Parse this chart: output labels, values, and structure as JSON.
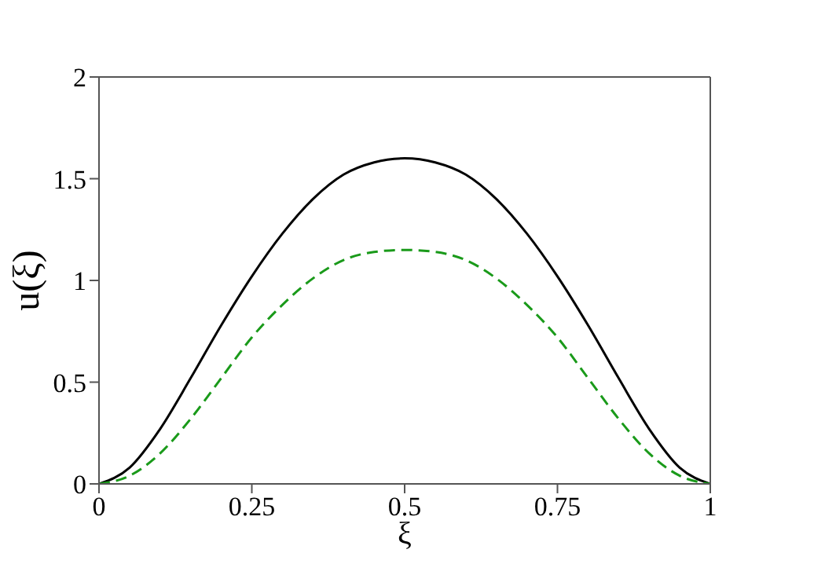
{
  "chart_data": {
    "type": "line",
    "xlabel": "ξ",
    "ylabel": "u(ξ)",
    "x": [
      0,
      0.05,
      0.1,
      0.15,
      0.2,
      0.25,
      0.3,
      0.35,
      0.4,
      0.45,
      0.5,
      0.55,
      0.6,
      0.65,
      0.7,
      0.75,
      0.8,
      0.85,
      0.9,
      0.95,
      1
    ],
    "series": [
      {
        "color": "#000000",
        "line_style": "solid",
        "values": [
          0,
          0.08,
          0.27,
          0.52,
          0.78,
          1.02,
          1.23,
          1.4,
          1.52,
          1.58,
          1.6,
          1.58,
          1.52,
          1.4,
          1.23,
          1.02,
          0.78,
          0.52,
          0.27,
          0.08,
          0
        ]
      },
      {
        "color": "#1a9a1a",
        "line_style": "dashed",
        "values": [
          0,
          0.04,
          0.15,
          0.32,
          0.52,
          0.72,
          0.88,
          1.01,
          1.1,
          1.14,
          1.15,
          1.14,
          1.1,
          1.01,
          0.88,
          0.72,
          0.52,
          0.32,
          0.15,
          0.04,
          0
        ]
      }
    ],
    "xlim": [
      0,
      1
    ],
    "xticks": [
      0,
      0.25,
      0.5,
      0.75,
      1
    ],
    "ylim": [
      0,
      2
    ],
    "yticks": [
      0,
      0.5,
      1,
      1.5,
      2
    ],
    "grid": false,
    "legend": false,
    "marker": "none"
  }
}
